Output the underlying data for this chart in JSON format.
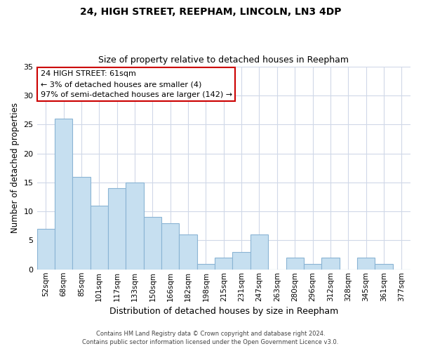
{
  "title": "24, HIGH STREET, REEPHAM, LINCOLN, LN3 4DP",
  "subtitle": "Size of property relative to detached houses in Reepham",
  "xlabel": "Distribution of detached houses by size in Reepham",
  "ylabel": "Number of detached properties",
  "footer_line1": "Contains HM Land Registry data © Crown copyright and database right 2024.",
  "footer_line2": "Contains public sector information licensed under the Open Government Licence v3.0.",
  "bin_labels": [
    "52sqm",
    "68sqm",
    "85sqm",
    "101sqm",
    "117sqm",
    "133sqm",
    "150sqm",
    "166sqm",
    "182sqm",
    "198sqm",
    "215sqm",
    "231sqm",
    "247sqm",
    "263sqm",
    "280sqm",
    "296sqm",
    "312sqm",
    "328sqm",
    "345sqm",
    "361sqm",
    "377sqm"
  ],
  "bar_heights": [
    7,
    26,
    16,
    11,
    14,
    15,
    9,
    8,
    6,
    1,
    2,
    3,
    6,
    0,
    2,
    1,
    2,
    0,
    2,
    1,
    0
  ],
  "bar_color": "#c6dff0",
  "bar_edge_color": "#8ab4d4",
  "annotation_title": "24 HIGH STREET: 61sqm",
  "annotation_line2": "← 3% of detached houses are smaller (4)",
  "annotation_line3": "97% of semi-detached houses are larger (142) →",
  "annotation_box_color": "#ffffff",
  "annotation_box_edge": "#cc0000",
  "ylim": [
    0,
    35
  ],
  "yticks": [
    0,
    5,
    10,
    15,
    20,
    25,
    30,
    35
  ],
  "background_color": "#ffffff",
  "grid_color": "#d0d8e8",
  "title_fontsize": 10,
  "subtitle_fontsize": 9
}
